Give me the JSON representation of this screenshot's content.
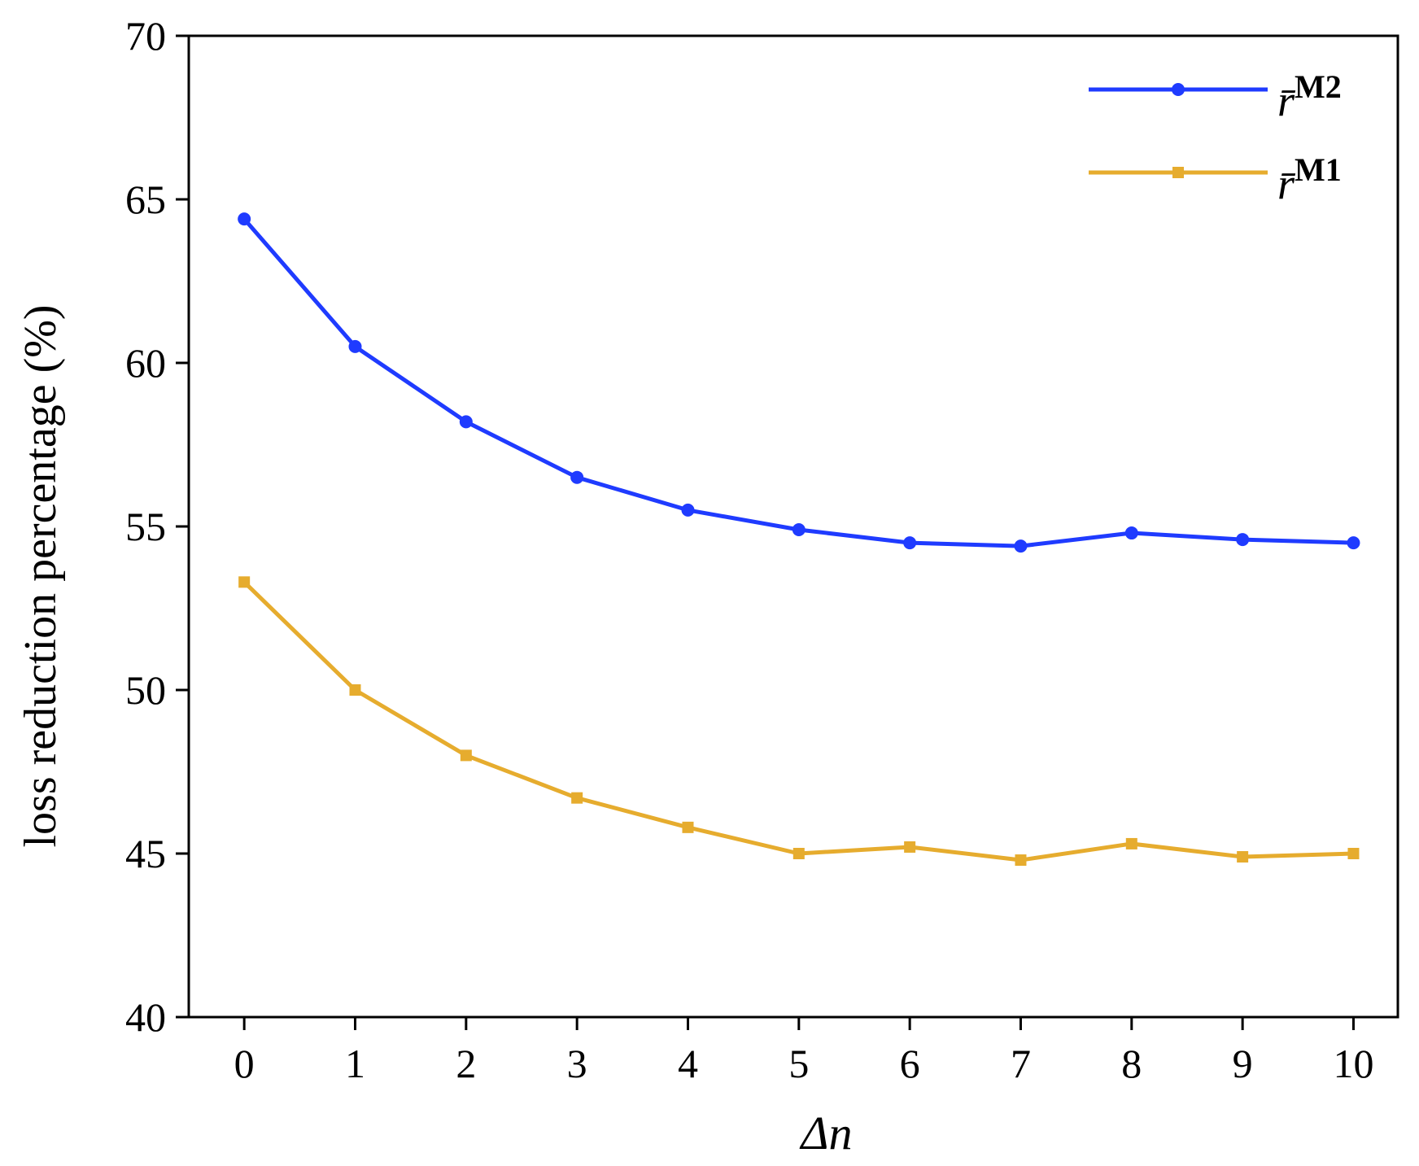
{
  "chart_data": {
    "type": "line",
    "x": [
      0,
      1,
      2,
      3,
      4,
      5,
      6,
      7,
      8,
      9,
      10
    ],
    "xlabel": "Δn",
    "ylabel": "loss reduction percentage (%)",
    "xlim": [
      -0.5,
      10.4
    ],
    "ylim": [
      40,
      70
    ],
    "xticks": [
      "0",
      "1",
      "2",
      "3",
      "4",
      "5",
      "6",
      "7",
      "8",
      "9",
      "10"
    ],
    "yticks": [
      "40",
      "45",
      "50",
      "55",
      "60",
      "65",
      "70"
    ],
    "grid": false,
    "legend_position": "top-right",
    "series": [
      {
        "name": "r̄",
        "name_sup": "M2",
        "color": "#1f3bff",
        "marker": "circle",
        "values": [
          64.4,
          60.5,
          58.2,
          56.5,
          55.5,
          54.9,
          54.5,
          54.4,
          54.8,
          54.6,
          54.5
        ]
      },
      {
        "name": "r̄",
        "name_sup": "M1",
        "color": "#e6ac2e",
        "marker": "square",
        "values": [
          53.3,
          50.0,
          48.0,
          46.7,
          45.8,
          45.0,
          45.2,
          44.8,
          45.3,
          44.9,
          45.0
        ]
      }
    ]
  }
}
